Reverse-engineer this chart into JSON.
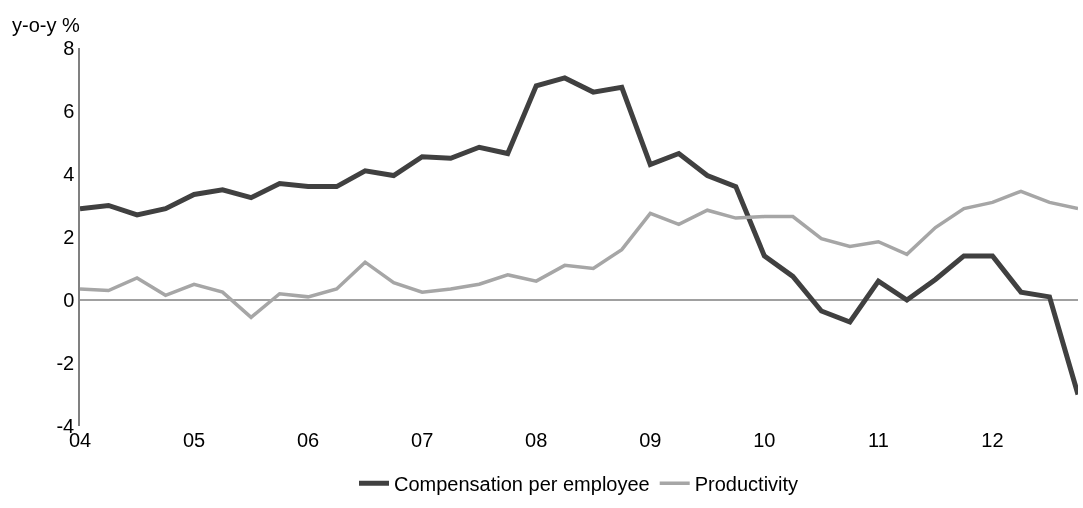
{
  "chart_data": {
    "type": "line",
    "ylabel": "y-o-y %",
    "x": [
      2004,
      2004.25,
      2004.5,
      2004.75,
      2005,
      2005.25,
      2005.5,
      2005.75,
      2006,
      2006.25,
      2006.5,
      2006.75,
      2007,
      2007.25,
      2007.5,
      2007.75,
      2008,
      2008.25,
      2008.5,
      2008.75,
      2009,
      2009.25,
      2009.5,
      2009.75,
      2010,
      2010.25,
      2010.5,
      2010.75,
      2011,
      2011.25,
      2011.5,
      2011.75,
      2012,
      2012.25,
      2012.5,
      2012.75
    ],
    "series": [
      {
        "name": "Compensation per employee",
        "color": "#404040",
        "values": [
          2.9,
          3.0,
          2.7,
          2.9,
          3.35,
          3.5,
          3.25,
          3.7,
          3.6,
          3.6,
          4.1,
          3.95,
          4.55,
          4.5,
          4.85,
          4.65,
          6.8,
          7.05,
          6.6,
          6.75,
          4.3,
          4.65,
          3.95,
          3.6,
          1.4,
          0.75,
          -0.35,
          -0.7,
          0.6,
          0.0,
          0.65,
          1.4,
          1.4,
          0.25,
          0.1,
          -3.0
        ]
      },
      {
        "name": "Productivity",
        "color": "#a6a6a6",
        "values": [
          0.35,
          0.3,
          0.7,
          0.15,
          0.5,
          0.25,
          -0.55,
          0.2,
          0.1,
          0.35,
          1.2,
          0.55,
          0.25,
          0.35,
          0.5,
          0.8,
          0.6,
          1.1,
          1.0,
          1.6,
          2.75,
          2.4,
          2.85,
          2.6,
          2.65,
          2.65,
          1.95,
          1.7,
          1.85,
          1.45,
          2.3,
          2.9,
          3.1,
          3.45,
          3.1,
          2.9
        ]
      }
    ],
    "xlim": [
      2004,
      2012.75
    ],
    "xticks": [
      {
        "value": 2004,
        "label": "04"
      },
      {
        "value": 2005,
        "label": "05"
      },
      {
        "value": 2006,
        "label": "06"
      },
      {
        "value": 2007,
        "label": "07"
      },
      {
        "value": 2008,
        "label": "08"
      },
      {
        "value": 2009,
        "label": "09"
      },
      {
        "value": 2010,
        "label": "10"
      },
      {
        "value": 2011,
        "label": "11"
      },
      {
        "value": 2012,
        "label": "12"
      }
    ],
    "ylim": [
      -4,
      8
    ],
    "yticks": [
      -4,
      -2,
      0,
      2,
      4,
      6,
      8
    ],
    "ref_lines": [
      {
        "axis": "y",
        "value": 0,
        "color": "#808080"
      }
    ],
    "grid": false,
    "legend": "bottom",
    "marker": "none",
    "line_style": "solid"
  }
}
